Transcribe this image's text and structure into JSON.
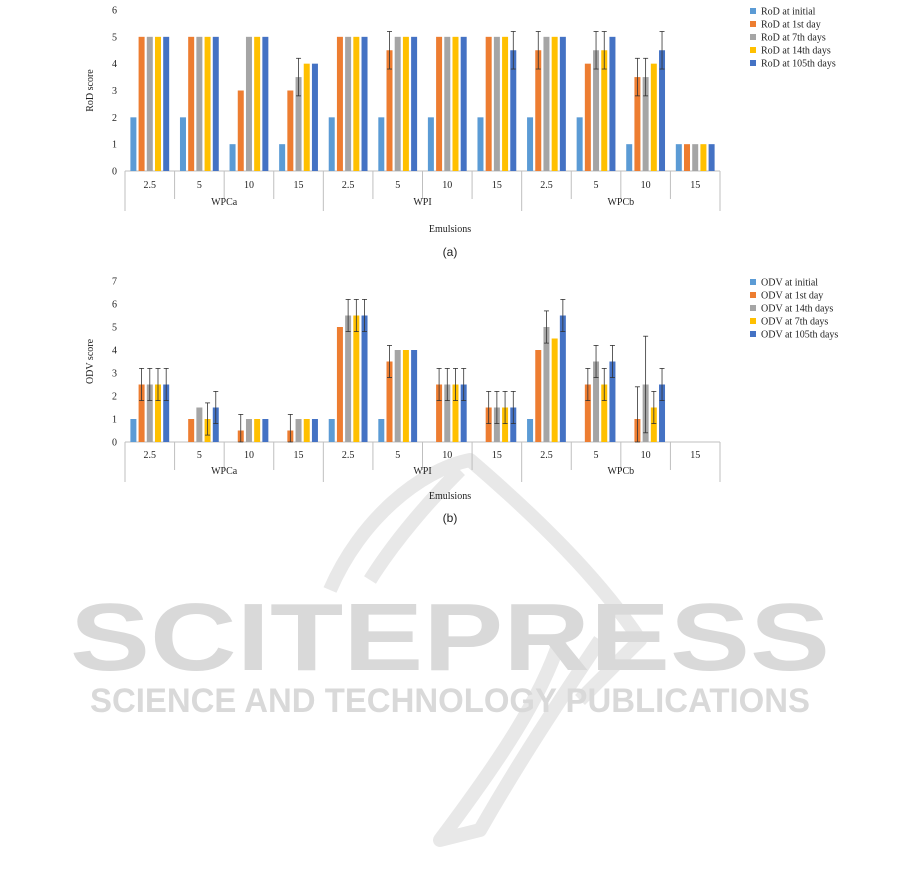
{
  "watermark": {
    "main": "SCITEPRESS",
    "sub": "SCIENCE AND TECHNOLOGY PUBLICATIONS",
    "color": "#e6e6e6"
  },
  "chart_data": [
    {
      "type": "bar",
      "caption": "(a)",
      "ylabel": "RoD score",
      "xlabel": "Emulsions",
      "ylim": [
        0,
        6
      ],
      "yticks": [
        0,
        1,
        2,
        3,
        4,
        5,
        6
      ],
      "categories": [
        "2.5",
        "5",
        "10",
        "15",
        "2.5",
        "5",
        "10",
        "15",
        "2.5",
        "5",
        "10",
        "15"
      ],
      "groups": [
        "WPCa",
        "WPI",
        "WPCb"
      ],
      "legend_position": "top-right",
      "series": [
        {
          "name": "RoD at initial",
          "color": "#5b9bd5",
          "values": [
            2,
            2,
            1,
            1,
            2,
            2,
            2,
            2,
            2,
            2,
            1,
            1
          ],
          "err": [
            0,
            0,
            0,
            0,
            0,
            0,
            0,
            0,
            0,
            0,
            0,
            0
          ]
        },
        {
          "name": "RoD at 1st day",
          "color": "#ed7d31",
          "values": [
            5,
            5,
            3,
            3,
            5,
            4.5,
            5,
            5,
            4.5,
            4,
            3.5,
            1
          ],
          "err": [
            0,
            0,
            0,
            0,
            0,
            0.7,
            0,
            0,
            0.7,
            0,
            0.7,
            0
          ]
        },
        {
          "name": "RoD at 7th days",
          "color": "#a5a5a5",
          "values": [
            5,
            5,
            5,
            3.5,
            5,
            5,
            5,
            5,
            5,
            4.5,
            3.5,
            1
          ],
          "err": [
            0,
            0,
            0,
            0.7,
            0,
            0,
            0,
            0,
            0,
            0.7,
            0.7,
            0
          ]
        },
        {
          "name": "RoD at 14th days",
          "color": "#ffc000",
          "values": [
            5,
            5,
            5,
            4,
            5,
            5,
            5,
            5,
            5,
            4.5,
            4,
            1
          ],
          "err": [
            0,
            0,
            0,
            0,
            0,
            0,
            0,
            0,
            0,
            0.7,
            0,
            0
          ]
        },
        {
          "name": "RoD at 105th days",
          "color": "#4472c4",
          "values": [
            5,
            5,
            5,
            4,
            5,
            5,
            5,
            4.5,
            5,
            5,
            4.5,
            1
          ],
          "err": [
            0,
            0,
            0,
            0,
            0,
            0,
            0,
            0.7,
            0,
            0,
            0.7,
            0
          ]
        }
      ]
    },
    {
      "type": "bar",
      "caption": "(b)",
      "ylabel": "ODV score",
      "xlabel": "Emulsions",
      "ylim": [
        0,
        7
      ],
      "yticks": [
        0,
        1,
        2,
        3,
        4,
        5,
        6,
        7
      ],
      "categories": [
        "2.5",
        "5",
        "10",
        "15",
        "2.5",
        "5",
        "10",
        "15",
        "2.5",
        "5",
        "10",
        "15"
      ],
      "groups": [
        "WPCa",
        "WPI",
        "WPCb"
      ],
      "legend_position": "top-right",
      "series": [
        {
          "name": "ODV at initial",
          "color": "#5b9bd5",
          "values": [
            1,
            0,
            0,
            0,
            1,
            1,
            0,
            0,
            1,
            0,
            0,
            0
          ],
          "err": [
            0,
            0,
            0,
            0,
            0,
            0,
            0,
            0,
            0,
            0,
            0,
            0
          ]
        },
        {
          "name": "ODV at 1st day",
          "color": "#ed7d31",
          "values": [
            2.5,
            1,
            0.5,
            0.5,
            5,
            3.5,
            2.5,
            1.5,
            4,
            2.5,
            1,
            0
          ],
          "err": [
            0.7,
            0,
            0.7,
            0.7,
            0,
            0.7,
            0.7,
            0.7,
            0,
            0.7,
            1.4,
            0
          ]
        },
        {
          "name": "ODV at 14th days",
          "color": "#a5a5a5",
          "values": [
            2.5,
            1.5,
            1,
            1,
            5.5,
            4,
            2.5,
            1.5,
            5,
            3.5,
            2.5,
            0
          ],
          "err": [
            0.7,
            0,
            0,
            0,
            0.7,
            0,
            0.7,
            0.7,
            0.7,
            0.7,
            2.1,
            0
          ]
        },
        {
          "name": "ODV at 7th days",
          "color": "#ffc000",
          "values": [
            2.5,
            1,
            1,
            1,
            5.5,
            4,
            2.5,
            1.5,
            4.5,
            2.5,
            1.5,
            0
          ],
          "err": [
            0.7,
            0.7,
            0,
            0,
            0.7,
            0,
            0.7,
            0.7,
            0,
            0.7,
            0.7,
            0
          ]
        },
        {
          "name": "ODV at 105th days",
          "color": "#4472c4",
          "values": [
            2.5,
            1.5,
            1,
            1,
            5.5,
            4,
            2.5,
            1.5,
            5.5,
            3.5,
            2.5,
            0
          ],
          "err": [
            0.7,
            0.7,
            0,
            0,
            0.7,
            0,
            0.7,
            0.7,
            0.7,
            0.7,
            0.7,
            0
          ]
        }
      ]
    }
  ]
}
